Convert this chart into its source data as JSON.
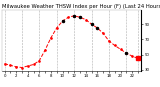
{
  "title": "Milwaukee Weather THSW Index per Hour (F) (Last 24 Hours)",
  "hours": [
    0,
    1,
    2,
    3,
    4,
    5,
    6,
    7,
    8,
    9,
    10,
    11,
    12,
    13,
    14,
    15,
    16,
    17,
    18,
    19,
    20,
    21,
    22,
    23
  ],
  "values": [
    38,
    36,
    34,
    33,
    35,
    37,
    42,
    56,
    72,
    85,
    94,
    99,
    101,
    99,
    96,
    90,
    85,
    78,
    68,
    62,
    57,
    52,
    48,
    45
  ],
  "line_color": "#ff0000",
  "grid_color": "#999999",
  "bg_color": "#ffffff",
  "text_color": "#000000",
  "ylim": [
    28,
    108
  ],
  "yticks": [
    30,
    50,
    70,
    90
  ],
  "ytick_labels": [
    "30",
    "50",
    "70",
    "90"
  ],
  "grid_hours": [
    0,
    3,
    6,
    9,
    12,
    15,
    18,
    21,
    23
  ],
  "title_fontsize": 3.8,
  "tick_fontsize": 2.8,
  "current_hour": 23,
  "current_value": 45,
  "black_dot_hours": [
    10,
    12,
    13,
    15,
    16,
    21
  ]
}
